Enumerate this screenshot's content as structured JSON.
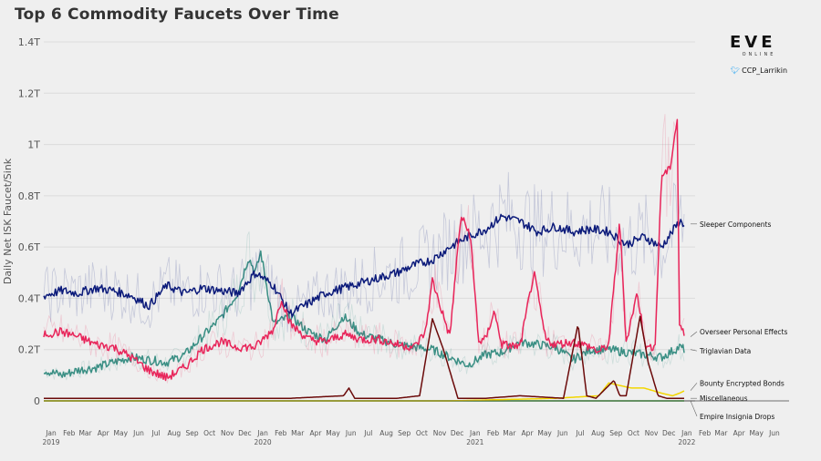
{
  "title": "Top 6 Commodity Faucets Over Time",
  "brand": {
    "logo": "EVE",
    "logo_sub": "ONLINE",
    "twitter_handle": "CCP_Larrikin",
    "twitter_icon": "twitter-bird-icon"
  },
  "chart_data": {
    "type": "line",
    "title": "Top 6 Commodity Faucets Over Time",
    "xlabel": "",
    "ylabel": "Daily Net ISK Faucet/Sink",
    "ylim": [
      0,
      1.4
    ],
    "y_unit": "T ISK",
    "y_ticks": [
      0,
      0.2,
      0.4,
      0.6,
      0.8,
      1.0,
      1.2,
      1.4
    ],
    "y_tick_labels": [
      "0",
      "0.2T",
      "0.4T",
      "0.6T",
      "0.8T",
      "1T",
      "1.2T",
      "1.4T"
    ],
    "xlim": [
      "2019-01-01",
      "2022-07-01"
    ],
    "x_tick_months": [
      "Jan",
      "Feb",
      "Mar",
      "Apr",
      "May",
      "Jun",
      "Jul",
      "Aug",
      "Sep",
      "Oct",
      "Nov",
      "Dec",
      "Jan",
      "Feb",
      "Mar",
      "Apr",
      "May",
      "Jun",
      "Jul",
      "Aug",
      "Sep",
      "Oct",
      "Nov",
      "Dec",
      "Jan",
      "Feb",
      "Mar",
      "Apr",
      "May",
      "Jun",
      "Jul",
      "Aug",
      "Sep",
      "Oct",
      "Nov",
      "Dec",
      "Jan",
      "Feb",
      "Mar",
      "Apr",
      "May",
      "Jun"
    ],
    "x_tick_years": [
      {
        "label": "2019",
        "month_index": 0
      },
      {
        "label": "2020",
        "month_index": 12
      },
      {
        "label": "2021",
        "month_index": 24
      },
      {
        "label": "2022",
        "month_index": 36
      }
    ],
    "grid": true,
    "legend": "inline labels at right end of lines",
    "series": [
      {
        "name": "Sleeper Components",
        "color": "#0b1a7a",
        "x": [
          "2019-01-01",
          "2019-02-01",
          "2019-03-01",
          "2019-04-01",
          "2019-05-01",
          "2019-06-01",
          "2019-07-01",
          "2019-08-01",
          "2019-09-01",
          "2019-10-01",
          "2019-11-01",
          "2019-12-01",
          "2020-01-01",
          "2020-02-01",
          "2020-03-01",
          "2020-04-01",
          "2020-05-01",
          "2020-06-01",
          "2020-07-01",
          "2020-08-01",
          "2020-09-01",
          "2020-10-01",
          "2020-11-01",
          "2020-12-01",
          "2021-01-01",
          "2021-02-01",
          "2021-03-01",
          "2021-04-01",
          "2021-05-01",
          "2021-06-01",
          "2021-07-01",
          "2021-08-01",
          "2021-09-01",
          "2021-10-01",
          "2021-11-01",
          "2021-12-01",
          "2022-01-01",
          "2022-01-10"
        ],
        "values": [
          0.41,
          0.43,
          0.42,
          0.44,
          0.43,
          0.41,
          0.37,
          0.45,
          0.42,
          0.44,
          0.43,
          0.42,
          0.5,
          0.45,
          0.34,
          0.38,
          0.42,
          0.44,
          0.46,
          0.48,
          0.5,
          0.53,
          0.55,
          0.6,
          0.64,
          0.67,
          0.72,
          0.7,
          0.66,
          0.68,
          0.66,
          0.67,
          0.66,
          0.61,
          0.64,
          0.6,
          0.7,
          0.69
        ]
      },
      {
        "name": "Overseer Personal Effects",
        "color": "#e8255a",
        "x": [
          "2019-01-01",
          "2019-02-01",
          "2019-03-01",
          "2019-04-01",
          "2019-05-01",
          "2019-06-01",
          "2019-07-01",
          "2019-08-01",
          "2019-09-01",
          "2019-10-01",
          "2019-11-01",
          "2019-12-01",
          "2020-01-01",
          "2020-02-01",
          "2020-02-15",
          "2020-03-01",
          "2020-04-01",
          "2020-05-01",
          "2020-06-01",
          "2020-07-01",
          "2020-08-01",
          "2020-09-01",
          "2020-10-01",
          "2020-10-20",
          "2020-11-01",
          "2020-12-01",
          "2020-12-20",
          "2021-01-05",
          "2021-01-20",
          "2021-02-01",
          "2021-02-15",
          "2021-03-01",
          "2021-04-01",
          "2021-04-25",
          "2021-05-15",
          "2021-06-01",
          "2021-07-01",
          "2021-08-01",
          "2021-08-15",
          "2021-09-01",
          "2021-09-20",
          "2021-10-01",
          "2021-10-20",
          "2021-11-05",
          "2021-11-20",
          "2021-12-01",
          "2021-12-15",
          "2021-12-28",
          "2022-01-01",
          "2022-01-10"
        ],
        "values": [
          0.26,
          0.27,
          0.25,
          0.22,
          0.21,
          0.17,
          0.12,
          0.09,
          0.13,
          0.2,
          0.23,
          0.21,
          0.21,
          0.28,
          0.4,
          0.3,
          0.24,
          0.23,
          0.26,
          0.24,
          0.24,
          0.22,
          0.21,
          0.27,
          0.47,
          0.25,
          0.72,
          0.65,
          0.23,
          0.24,
          0.35,
          0.22,
          0.21,
          0.5,
          0.24,
          0.22,
          0.23,
          0.21,
          0.19,
          0.22,
          0.7,
          0.23,
          0.42,
          0.2,
          0.22,
          0.88,
          0.9,
          1.1,
          0.3,
          0.25
        ]
      },
      {
        "name": "Triglavian Data",
        "color": "#3a8f84",
        "x": [
          "2019-01-01",
          "2019-02-01",
          "2019-03-01",
          "2019-04-01",
          "2019-05-01",
          "2019-06-01",
          "2019-07-01",
          "2019-08-01",
          "2019-09-01",
          "2019-10-01",
          "2019-11-01",
          "2019-12-01",
          "2019-12-20",
          "2020-01-01",
          "2020-01-10",
          "2020-02-01",
          "2020-03-01",
          "2020-04-01",
          "2020-05-01",
          "2020-06-01",
          "2020-07-01",
          "2020-08-01",
          "2020-09-01",
          "2020-10-01",
          "2020-11-01",
          "2020-12-01",
          "2021-01-01",
          "2021-02-01",
          "2021-03-01",
          "2021-04-01",
          "2021-05-01",
          "2021-06-01",
          "2021-07-01",
          "2021-08-01",
          "2021-09-01",
          "2021-10-01",
          "2021-11-01",
          "2021-12-01",
          "2022-01-01",
          "2022-01-10"
        ],
        "values": [
          0.12,
          0.1,
          0.12,
          0.13,
          0.15,
          0.17,
          0.16,
          0.15,
          0.18,
          0.25,
          0.32,
          0.42,
          0.56,
          0.5,
          0.58,
          0.3,
          0.33,
          0.27,
          0.24,
          0.33,
          0.26,
          0.24,
          0.22,
          0.21,
          0.2,
          0.17,
          0.14,
          0.18,
          0.19,
          0.23,
          0.22,
          0.21,
          0.16,
          0.2,
          0.2,
          0.19,
          0.18,
          0.17,
          0.21,
          0.2
        ]
      },
      {
        "name": "Bounty Encrypted Bonds",
        "color": "#f2d600",
        "x": [
          "2019-01-01",
          "2020-12-01",
          "2021-03-01",
          "2021-06-01",
          "2021-08-15",
          "2021-09-01",
          "2021-09-20",
          "2021-10-10",
          "2021-11-01",
          "2021-12-01",
          "2021-12-20",
          "2022-01-01",
          "2022-01-10"
        ],
        "values": [
          0.0,
          0.0,
          0.005,
          0.01,
          0.02,
          0.07,
          0.06,
          0.05,
          0.05,
          0.03,
          0.02,
          0.03,
          0.04
        ]
      },
      {
        "name": "Miscellaneous",
        "color": "#6b0a0a",
        "x": [
          "2019-01-01",
          "2019-06-01",
          "2019-12-01",
          "2020-03-01",
          "2020-06-01",
          "2020-06-10",
          "2020-06-20",
          "2020-09-01",
          "2020-10-10",
          "2020-11-01",
          "2020-11-20",
          "2020-12-15",
          "2021-02-01",
          "2021-04-01",
          "2021-06-15",
          "2021-07-10",
          "2021-07-25",
          "2021-08-10",
          "2021-09-10",
          "2021-09-20",
          "2021-10-01",
          "2021-10-25",
          "2021-11-08",
          "2021-11-25",
          "2021-12-10",
          "2022-01-01",
          "2022-01-10"
        ],
        "values": [
          0.01,
          0.01,
          0.01,
          0.01,
          0.02,
          0.05,
          0.01,
          0.01,
          0.02,
          0.32,
          0.2,
          0.01,
          0.01,
          0.02,
          0.01,
          0.3,
          0.02,
          0.01,
          0.08,
          0.02,
          0.02,
          0.33,
          0.15,
          0.02,
          0.01,
          0.01,
          0.01
        ]
      },
      {
        "name": "Empire Insignia Drops",
        "color": "#2e9b28",
        "x": [
          "2019-01-01",
          "2020-06-01",
          "2021-06-01",
          "2022-01-10"
        ],
        "values": [
          0.0,
          0.0,
          0.0,
          0.0
        ]
      }
    ]
  }
}
